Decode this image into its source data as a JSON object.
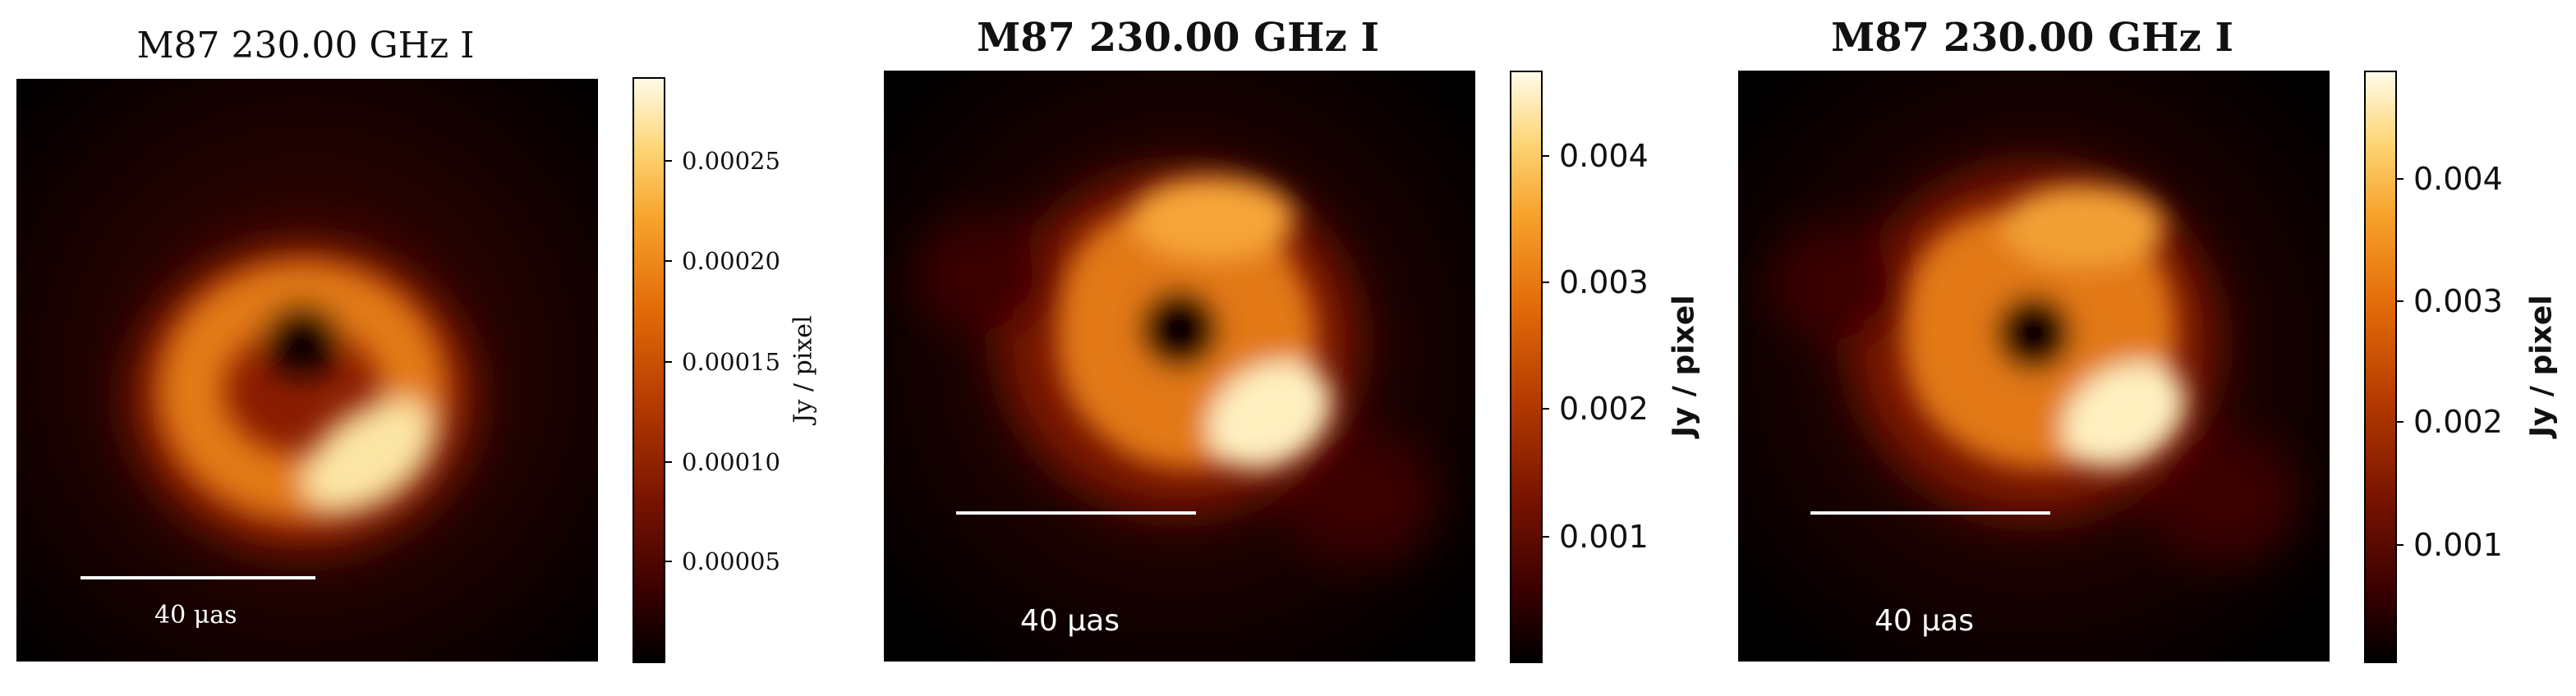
{
  "panels": [
    {
      "title": "M87 230.00 GHz I",
      "scalebar_label": "40 μas",
      "colorbar_label": "Jy / pixel",
      "colorbar_ticks": [
        "0.00005",
        "0.00010",
        "0.00015",
        "0.00020",
        "0.00025"
      ]
    },
    {
      "title": "M87 230.00 GHz I",
      "scalebar_label": "40 μas",
      "colorbar_label": "Jy / pixel",
      "colorbar_ticks": [
        "0.001",
        "0.002",
        "0.003",
        "0.004"
      ]
    },
    {
      "title": "M87 230.00 GHz I",
      "scalebar_label": "40 μas",
      "colorbar_label": "Jy / pixel",
      "colorbar_ticks": [
        "0.001",
        "0.002",
        "0.003",
        "0.004"
      ]
    }
  ],
  "colormap": "afmhot",
  "colors": {
    "background": "#000000",
    "scalebar": "#ffffff",
    "ring_peak": "#fff6d8"
  }
}
